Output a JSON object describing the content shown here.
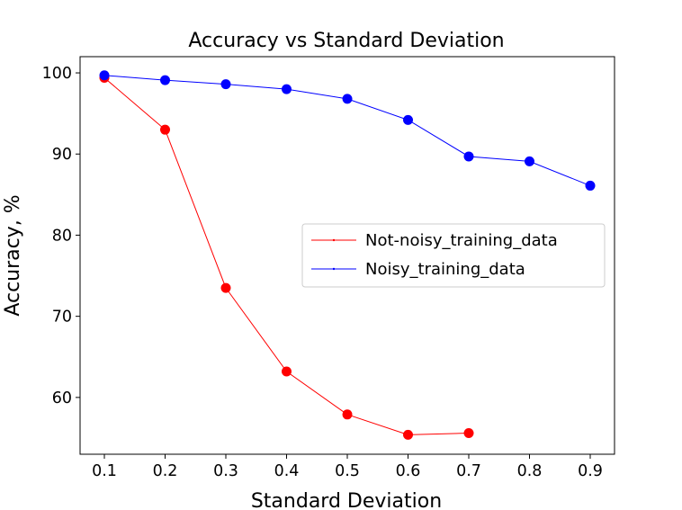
{
  "chart_data": {
    "type": "line",
    "title": "Accuracy vs Standard Deviation",
    "xlabel": "Standard Deviation",
    "ylabel": "Accuracy, %",
    "xlim": [
      0.06,
      0.94
    ],
    "ylim": [
      53,
      102
    ],
    "x_ticks": [
      "0.1",
      "0.2",
      "0.3",
      "0.4",
      "0.5",
      "0.6",
      "0.7",
      "0.8",
      "0.9"
    ],
    "y_ticks": [
      "60",
      "70",
      "80",
      "90",
      "100"
    ],
    "grid": false,
    "legend_position": "center-right",
    "series": [
      {
        "name": "Not-noisy_training_data",
        "color": "#ff0000",
        "x": [
          0.1,
          0.2,
          0.3,
          0.4,
          0.5,
          0.6,
          0.7
        ],
        "values": [
          99.4,
          93.0,
          73.5,
          63.2,
          57.9,
          55.4,
          55.6
        ]
      },
      {
        "name": "Noisy_training_data",
        "color": "#0000ff",
        "x": [
          0.1,
          0.2,
          0.3,
          0.4,
          0.5,
          0.6,
          0.7,
          0.8,
          0.9
        ],
        "values": [
          99.7,
          99.1,
          98.6,
          98.0,
          96.8,
          94.2,
          89.7,
          89.1,
          86.1
        ]
      }
    ]
  }
}
